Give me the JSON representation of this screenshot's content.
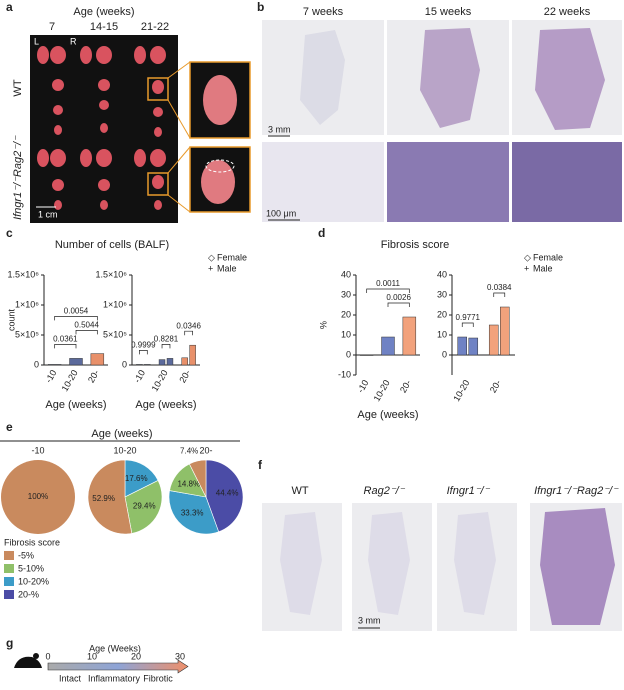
{
  "panels": {
    "a": {
      "label": "a",
      "age_title": "Age (weeks)",
      "ages": [
        "7",
        "14-15",
        "21-22"
      ],
      "left": "L",
      "right": "R",
      "rows": [
        "WT",
        "Ifngr1⁻/⁻Rag2⁻/⁻"
      ],
      "scale": "1 cm"
    },
    "b": {
      "label": "b",
      "columns": [
        "7 weeks",
        "15 weeks",
        "22 weeks"
      ],
      "scale_top": "3 mm",
      "scale_bottom": "100 μm"
    },
    "c": {
      "label": "c",
      "title": "Number of cells (BALF)"
    },
    "d": {
      "label": "d",
      "title": "Fibrosis score"
    },
    "e": {
      "label": "e"
    },
    "f": {
      "label": "f",
      "columns": [
        "WT",
        "Rag2⁻/⁻",
        "Ifngr1⁻/⁻",
        "Ifngr1⁻/⁻Rag2⁻/⁻"
      ],
      "scale": "3 mm"
    },
    "g": {
      "label": "g",
      "axis_title": "Age (Weeks)",
      "ticks": [
        "0",
        "10",
        "20",
        "30"
      ],
      "phases": [
        "Intact",
        "Inflammatory",
        "Fibrotic"
      ]
    }
  },
  "chart_data": [
    {
      "type": "bar",
      "ylabel": "count",
      "xlabel": "Age (weeks)",
      "categories": [
        "-10",
        "10-20",
        "20-"
      ],
      "colors": [
        "#8a96b8",
        "#5b6a9c",
        "#e8906a"
      ],
      "values": [
        10000,
        110000,
        190000
      ],
      "ylim": [
        0,
        1500000
      ],
      "yticks": [
        0,
        {
          "value": 500000,
          "label": "5×10⁵"
        },
        {
          "value": 1000000,
          "label": "1×10⁶"
        },
        {
          "value": 1500000,
          "label": "1.5×10⁶"
        }
      ],
      "brackets": [
        {
          "label": "0.0361",
          "between": [
            0,
            1
          ]
        },
        {
          "label": "0.5044",
          "between": [
            1,
            2
          ]
        },
        {
          "label": "0.0054",
          "between": [
            0,
            2
          ]
        }
      ]
    },
    {
      "type": "bar",
      "xlabel": "Age (weeks)",
      "categories": [
        "-10",
        "10-20",
        "20-"
      ],
      "colors": [
        "#8a96b8",
        "#5b6a9c",
        "#e8906a"
      ],
      "series": [
        {
          "name": "Female",
          "marker": "◇",
          "values": [
            10000,
            90000,
            120000
          ]
        },
        {
          "name": "Male",
          "marker": "+",
          "values": [
            10000,
            110000,
            330000
          ]
        }
      ],
      "ylim": [
        0,
        1500000
      ],
      "yticks": [
        0,
        {
          "value": 500000,
          "label": "5×10⁵"
        },
        {
          "value": 1000000,
          "label": "1×10⁶"
        },
        {
          "value": 1500000,
          "label": "1.5×10⁶"
        }
      ],
      "brackets": [
        {
          "label": "0.9999",
          "between": [
            0,
            1
          ]
        },
        {
          "label": "0.8281",
          "between": [
            2,
            3
          ]
        },
        {
          "label": "0.0346",
          "between": [
            4,
            5
          ]
        }
      ],
      "legend": true
    },
    {
      "type": "bar",
      "ylabel": "%",
      "xlabel": "Age (weeks)",
      "categories": [
        "-10",
        "10-20",
        "20-"
      ],
      "colors": [
        "#6f82c4",
        "#6f82c4",
        "#f2a27c"
      ],
      "values": [
        0,
        9,
        19
      ],
      "ylim": [
        -10,
        40
      ],
      "yticks": [
        -10,
        0,
        10,
        20,
        30,
        40
      ],
      "brackets": [
        {
          "label": "0.0026",
          "between": [
            1,
            2
          ]
        },
        {
          "label": "0.0011",
          "between": [
            0,
            2
          ]
        }
      ]
    },
    {
      "type": "bar",
      "categories": [
        "10-20",
        "20-"
      ],
      "colors": [
        "#6f82c4",
        "#f2a27c"
      ],
      "series": [
        {
          "name": "Female",
          "marker": "◇",
          "values": [
            9,
            15
          ]
        },
        {
          "name": "Male",
          "marker": "+",
          "values": [
            8.5,
            24
          ]
        }
      ],
      "ylim": [
        -10,
        40
      ],
      "yticks": [
        0,
        10,
        20,
        30,
        40
      ],
      "brackets": [
        {
          "label": "0.9771",
          "between": [
            0,
            1
          ]
        },
        {
          "label": "0.0384",
          "between": [
            2,
            3
          ]
        }
      ],
      "legend": true
    },
    {
      "type": "pie",
      "group_label": "Age (weeks)",
      "legend_title": "Fibrosis score",
      "categories": [
        "-5%",
        "5-10%",
        "10-20%",
        "20-%"
      ],
      "colors": [
        "#c98a5e",
        "#8fc069",
        "#3c9cc8",
        "#4b4ca6"
      ],
      "pies": [
        {
          "title": "-10",
          "values": [
            100,
            0,
            0,
            0
          ],
          "value_labels": [
            "100%",
            null,
            null,
            null
          ]
        },
        {
          "title": "10-20",
          "values": [
            52.9,
            29.4,
            17.6,
            0
          ],
          "value_labels": [
            "52.9%",
            "29.4%",
            "17.6%",
            null
          ]
        },
        {
          "title": "20-",
          "values": [
            7.4,
            14.8,
            33.3,
            44.4
          ],
          "value_labels": [
            "7.4%",
            "14.8%",
            "33.3%",
            "44.4%"
          ]
        }
      ]
    }
  ]
}
